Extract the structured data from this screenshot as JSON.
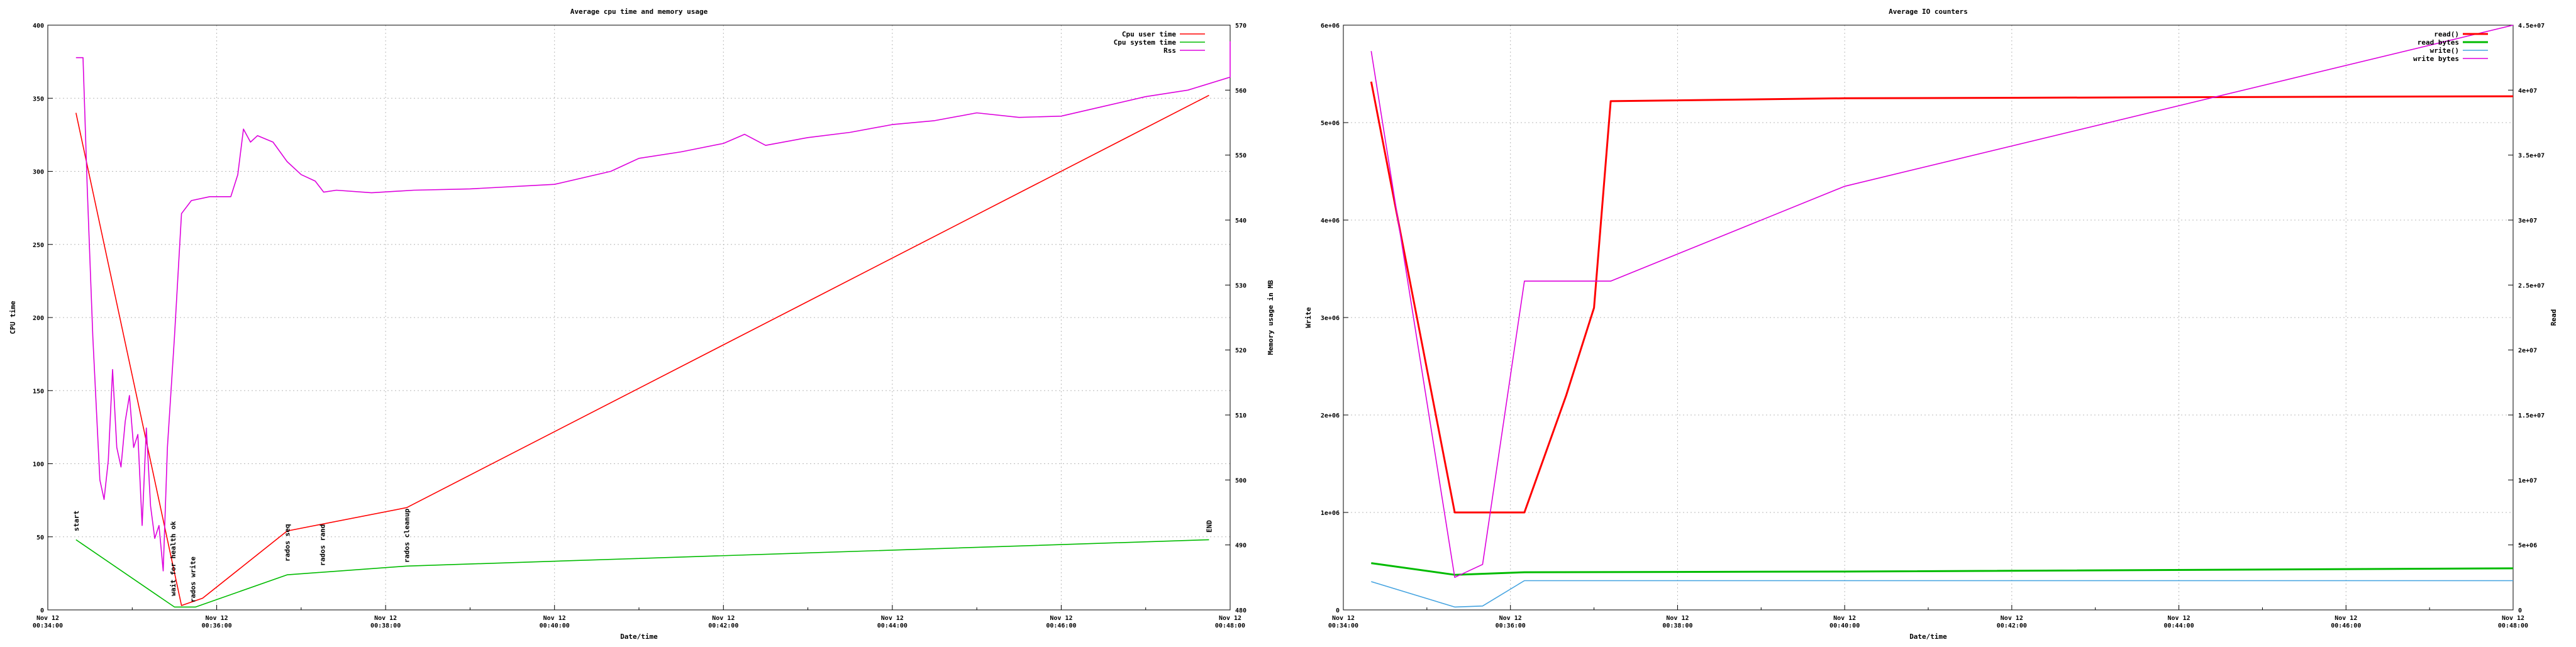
{
  "chart_data": [
    {
      "type": "line",
      "title": "Average cpu time and memory usage",
      "xlabel": "Date/time",
      "ylabel": "CPU time",
      "y2label": "Memory usage in MB",
      "xlim": [
        "2012-11-12 00:34:00",
        "2012-11-12 00:48:00"
      ],
      "ylim": [
        0,
        400
      ],
      "y2lim": [
        480,
        570
      ],
      "grid": true,
      "legend_position": "top-right",
      "xticks": [
        {
          "t": "00:34:00",
          "date": "Nov 12",
          "time": "00:34:00"
        },
        {
          "t": "00:36:00",
          "date": "Nov 12",
          "time": "00:36:00"
        },
        {
          "t": "00:38:00",
          "date": "Nov 12",
          "time": "00:38:00"
        },
        {
          "t": "00:40:00",
          "date": "Nov 12",
          "time": "00:40:00"
        },
        {
          "t": "00:42:00",
          "date": "Nov 12",
          "time": "00:42:00"
        },
        {
          "t": "00:44:00",
          "date": "Nov 12",
          "time": "00:44:00"
        },
        {
          "t": "00:46:00",
          "date": "Nov 12",
          "time": "00:46:00"
        },
        {
          "t": "00:48:00",
          "date": "Nov 12",
          "time": "00:48:00"
        }
      ],
      "yticks": [
        "0",
        "50",
        "100",
        "150",
        "200",
        "250",
        "300",
        "350",
        "400"
      ],
      "y2ticks": [
        "480",
        "490",
        "500",
        "510",
        "520",
        "530",
        "540",
        "550",
        "560",
        "570"
      ],
      "annotations": [
        {
          "label": "start",
          "t": "00:34:20"
        },
        {
          "label": "wait for health ok",
          "t": "00:35:29"
        },
        {
          "label": "rados write",
          "t": "00:35:43"
        },
        {
          "label": "rados seq",
          "t": "00:36:50"
        },
        {
          "label": "rados rand",
          "t": "00:37:15"
        },
        {
          "label": "rados cleanup",
          "t": "00:38:15"
        },
        {
          "label": "END",
          "t": "00:47:45"
        }
      ],
      "series": [
        {
          "name": "Cpu user time",
          "color": "#ff0000",
          "axis": "y",
          "points": [
            [
              "00:34:20",
              340
            ],
            [
              "00:35:35",
              3
            ],
            [
              "00:35:50",
              8
            ],
            [
              "00:36:50",
              54
            ],
            [
              "00:38:15",
              70
            ],
            [
              "00:47:45",
              352
            ]
          ]
        },
        {
          "name": "Cpu system time",
          "color": "#00bb00",
          "axis": "y",
          "points": [
            [
              "00:34:20",
              48
            ],
            [
              "00:35:30",
              2
            ],
            [
              "00:35:45",
              2
            ],
            [
              "00:36:50",
              24
            ],
            [
              "00:38:15",
              30
            ],
            [
              "00:47:45",
              48
            ]
          ]
        },
        {
          "name": "Rss",
          "color": "#dd00dd",
          "axis": "y2",
          "points": [
            [
              "00:34:20",
              565
            ],
            [
              "00:34:25",
              565
            ],
            [
              "00:34:28",
              545
            ],
            [
              "00:34:32",
              522
            ],
            [
              "00:34:37",
              500
            ],
            [
              "00:34:40",
              497
            ],
            [
              "00:34:43",
              503
            ],
            [
              "00:34:46",
              517
            ],
            [
              "00:34:49",
              505
            ],
            [
              "00:34:52",
              502
            ],
            [
              "00:34:55",
              509
            ],
            [
              "00:34:58",
              513
            ],
            [
              "00:35:01",
              505
            ],
            [
              "00:35:04",
              507
            ],
            [
              "00:35:07",
              493
            ],
            [
              "00:35:10",
              508
            ],
            [
              "00:35:13",
              496
            ],
            [
              "00:35:16",
              491
            ],
            [
              "00:35:19",
              493
            ],
            [
              "00:35:22",
              486
            ],
            [
              "00:35:25",
              505
            ],
            [
              "00:35:30",
              522
            ],
            [
              "00:35:35",
              541
            ],
            [
              "00:35:42",
              543
            ],
            [
              "00:35:55",
              543.6
            ],
            [
              "00:36:10",
              543.6
            ],
            [
              "00:36:15",
              547
            ],
            [
              "00:36:19",
              554
            ],
            [
              "00:36:24",
              552
            ],
            [
              "00:36:29",
              553
            ],
            [
              "00:36:40",
              552
            ],
            [
              "00:36:50",
              549
            ],
            [
              "00:37:00",
              547
            ],
            [
              "00:37:10",
              546
            ],
            [
              "00:37:16",
              544.3
            ],
            [
              "00:37:25",
              544.6
            ],
            [
              "00:37:50",
              544.2
            ],
            [
              "00:38:20",
              544.6
            ],
            [
              "00:39:00",
              544.8
            ],
            [
              "00:40:00",
              545.5
            ],
            [
              "00:40:40",
              547.5
            ],
            [
              "00:41:00",
              549.5
            ],
            [
              "00:41:30",
              550.5
            ],
            [
              "00:42:00",
              551.8
            ],
            [
              "00:42:15",
              553.2
            ],
            [
              "00:42:30",
              551.5
            ],
            [
              "00:43:00",
              552.7
            ],
            [
              "00:43:30",
              553.5
            ],
            [
              "00:44:00",
              554.7
            ],
            [
              "00:44:30",
              555.3
            ],
            [
              "00:45:00",
              556.5
            ],
            [
              "00:45:30",
              555.8
            ],
            [
              "00:46:00",
              556
            ],
            [
              "00:46:30",
              557.5
            ],
            [
              "00:47:00",
              559
            ],
            [
              "00:47:30",
              560
            ],
            [
              "00:48:00",
              562
            ],
            [
              "00:48:30",
              563.5
            ],
            [
              "00:49:00",
              565
            ],
            [
              "00:49:15",
              567
            ],
            [
              "00:49:25",
              567.5
            ]
          ]
        }
      ]
    },
    {
      "type": "line",
      "title": "Average IO counters",
      "xlabel": "Date/time",
      "ylabel": "Write",
      "y2label": "Read",
      "xlim": [
        "2012-11-12 00:34:00",
        "2012-11-12 00:48:00"
      ],
      "ylim": [
        0,
        6000000
      ],
      "y2lim": [
        0,
        45000000
      ],
      "grid": true,
      "legend_position": "top-right",
      "xticks": [
        {
          "t": "00:34:00",
          "date": "Nov 12",
          "time": "00:34:00"
        },
        {
          "t": "00:36:00",
          "date": "Nov 12",
          "time": "00:36:00"
        },
        {
          "t": "00:38:00",
          "date": "Nov 12",
          "time": "00:38:00"
        },
        {
          "t": "00:40:00",
          "date": "Nov 12",
          "time": "00:40:00"
        },
        {
          "t": "00:42:00",
          "date": "Nov 12",
          "time": "00:42:00"
        },
        {
          "t": "00:44:00",
          "date": "Nov 12",
          "time": "00:44:00"
        },
        {
          "t": "00:46:00",
          "date": "Nov 12",
          "time": "00:46:00"
        },
        {
          "t": "00:48:00",
          "date": "Nov 12",
          "time": "00:48:00"
        }
      ],
      "yticks": [
        "0",
        "1e+06",
        "2e+06",
        "3e+06",
        "4e+06",
        "5e+06",
        "6e+06"
      ],
      "y2ticks": [
        "0",
        "5e+06",
        "1e+07",
        "1.5e+07",
        "2e+07",
        "2.5e+07",
        "3e+07",
        "3.5e+07",
        "4e+07",
        "4.5e+07"
      ],
      "series": [
        {
          "name": "read()",
          "color": "#ff0000",
          "axis": "y",
          "thick": true,
          "points": [
            [
              "00:34:20",
              5420000
            ],
            [
              "00:35:20",
              1000000
            ],
            [
              "00:36:10",
              1000000
            ],
            [
              "00:36:40",
              2200000
            ],
            [
              "00:37:00",
              3100000
            ],
            [
              "00:37:12",
              5220000
            ],
            [
              "00:40:00",
              5250000
            ],
            [
              "00:48:00",
              5270000
            ]
          ]
        },
        {
          "name": "read bytes",
          "color": "#00bb00",
          "axis": "y2",
          "thick": true,
          "points": [
            [
              "00:34:20",
              3600000
            ],
            [
              "00:35:20",
              2700000
            ],
            [
              "00:36:10",
              2900000
            ],
            [
              "00:40:00",
              2950000
            ],
            [
              "00:48:00",
              3200000
            ]
          ]
        },
        {
          "name": "write()",
          "color": "#44a3e0",
          "axis": "y",
          "points": [
            [
              "00:34:20",
              290000
            ],
            [
              "00:35:20",
              30000
            ],
            [
              "00:35:40",
              40000
            ],
            [
              "00:36:10",
              300000
            ],
            [
              "00:48:00",
              300000
            ]
          ]
        },
        {
          "name": "write bytes",
          "color": "#dd00dd",
          "axis": "y2",
          "points": [
            [
              "00:34:20",
              43000000
            ],
            [
              "00:35:20",
              2500000
            ],
            [
              "00:35:40",
              3500000
            ],
            [
              "00:36:10",
              25300000
            ],
            [
              "00:37:12",
              25300000
            ],
            [
              "00:40:00",
              32600000
            ],
            [
              "00:48:00",
              49000000
            ]
          ]
        }
      ]
    }
  ]
}
